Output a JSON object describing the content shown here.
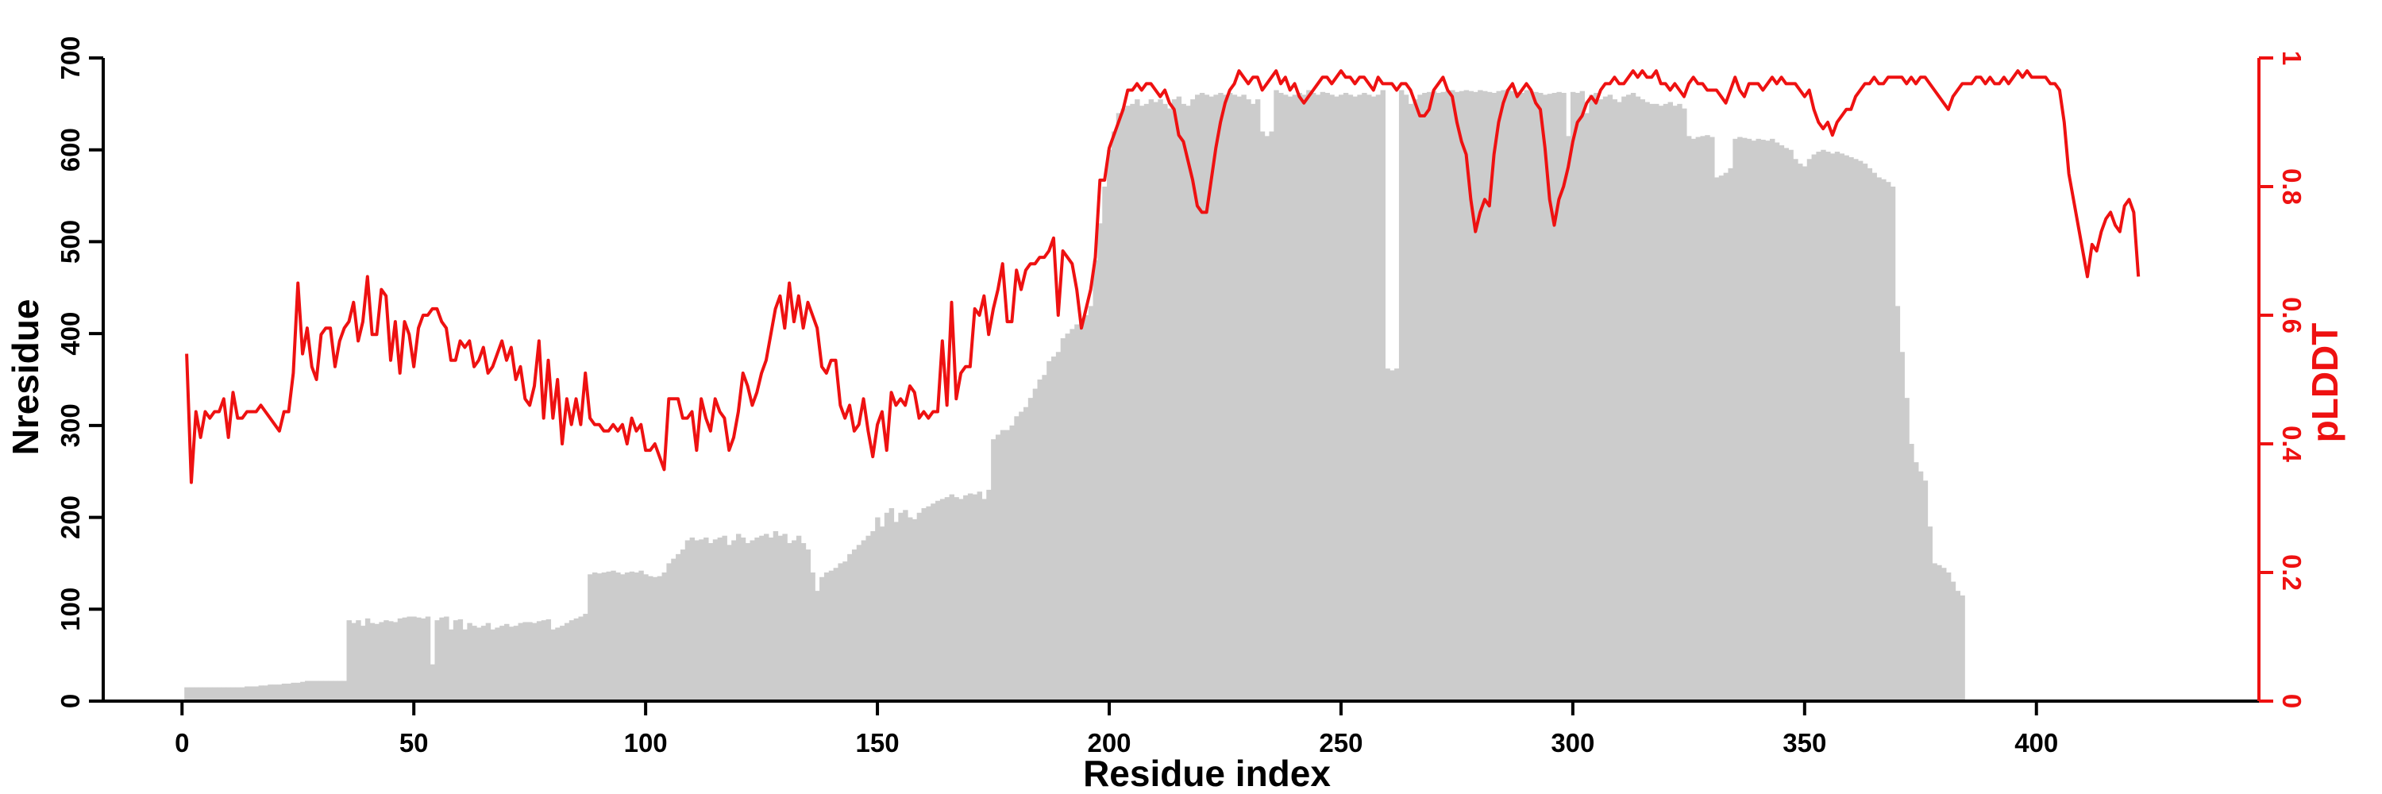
{
  "chart_data": {
    "type": "bar",
    "xlabel": "Residue index",
    "ylabel": "Nresidue",
    "y2label": "pLDDT",
    "xlim": [
      -17,
      448
    ],
    "ylim": [
      0,
      700
    ],
    "y2lim": [
      0,
      1
    ],
    "x_ticks": [
      0,
      50,
      100,
      150,
      200,
      250,
      300,
      350,
      400
    ],
    "y_ticks": [
      0,
      100,
      200,
      300,
      400,
      500,
      600,
      700
    ],
    "y2_ticks": [
      0,
      0.2,
      0.4,
      0.6,
      0.8,
      1
    ],
    "grid": false,
    "colors": {
      "bars": "#cccccc",
      "line": "#ee1111",
      "axis": "#000000",
      "axis2": "#ee1111"
    },
    "series": [
      {
        "type": "bar",
        "axis": "left",
        "values": [
          15,
          15,
          15,
          15,
          15,
          15,
          15,
          15,
          15,
          15,
          15,
          15,
          15,
          16,
          16,
          16,
          17,
          17,
          18,
          18,
          18,
          19,
          19,
          20,
          20,
          21,
          22,
          22,
          22,
          22,
          22,
          22,
          22,
          22,
          22,
          88,
          85,
          88,
          82,
          90,
          85,
          84,
          86,
          88,
          87,
          86,
          90,
          91,
          92,
          92,
          91,
          90,
          92,
          40,
          88,
          91,
          92,
          78,
          88,
          89,
          78,
          85,
          82,
          80,
          82,
          85,
          78,
          80,
          82,
          84,
          81,
          82,
          85,
          86,
          86,
          85,
          87,
          88,
          89,
          78,
          80,
          82,
          85,
          88,
          90,
          92,
          95,
          138,
          140,
          139,
          140,
          141,
          142,
          140,
          138,
          140,
          141,
          140,
          142,
          138,
          136,
          135,
          136,
          140,
          150,
          155,
          160,
          165,
          175,
          178,
          175,
          176,
          178,
          172,
          176,
          178,
          180,
          170,
          175,
          182,
          178,
          172,
          175,
          178,
          180,
          182,
          178,
          185,
          180,
          182,
          172,
          175,
          180,
          172,
          165,
          140,
          120,
          135,
          140,
          142,
          145,
          150,
          152,
          160,
          165,
          170,
          175,
          180,
          185,
          200,
          190,
          205,
          210,
          195,
          205,
          208,
          200,
          198,
          205,
          210,
          212,
          215,
          218,
          220,
          222,
          225,
          222,
          220,
          224,
          226,
          225,
          228,
          220,
          230,
          285,
          290,
          295,
          295,
          300,
          310,
          315,
          320,
          330,
          340,
          350,
          355,
          370,
          375,
          380,
          395,
          400,
          405,
          410,
          415,
          420,
          430,
          480,
          520,
          560,
          600,
          620,
          640,
          645,
          648,
          650,
          655,
          648,
          650,
          655,
          652,
          655,
          650,
          645,
          655,
          658,
          650,
          648,
          655,
          660,
          662,
          660,
          658,
          660,
          662,
          660,
          662,
          660,
          658,
          660,
          655,
          650,
          655,
          620,
          615,
          620,
          665,
          662,
          660,
          658,
          660,
          662,
          660,
          665,
          662,
          660,
          663,
          662,
          660,
          658,
          660,
          662,
          660,
          658,
          660,
          662,
          660,
          658,
          660,
          665,
          362,
          360,
          362,
          665,
          660,
          650,
          655,
          660,
          662,
          663,
          664,
          662,
          663,
          664,
          665,
          663,
          664,
          665,
          664,
          663,
          665,
          664,
          663,
          662,
          664,
          665,
          666,
          664,
          663,
          662,
          665,
          664,
          663,
          662,
          660,
          661,
          662,
          663,
          662,
          615,
          663,
          662,
          664,
          640,
          660,
          662,
          655,
          658,
          660,
          655,
          652,
          658,
          660,
          662,
          658,
          655,
          652,
          650,
          650,
          648,
          650,
          652,
          648,
          650,
          645,
          615,
          612,
          614,
          615,
          616,
          614,
          570,
          572,
          575,
          580,
          612,
          614,
          613,
          612,
          610,
          612,
          611,
          610,
          612,
          608,
          605,
          602,
          600,
          590,
          585,
          582,
          590,
          595,
          598,
          600,
          598,
          596,
          598,
          596,
          594,
          592,
          590,
          588,
          585,
          580,
          575,
          570,
          568,
          565,
          560,
          430,
          380,
          330,
          280,
          260,
          250,
          240,
          190,
          150,
          148,
          145,
          140,
          130,
          120,
          115
        ]
      },
      {
        "type": "line",
        "axis": "right",
        "values": [
          0.54,
          0.34,
          0.45,
          0.41,
          0.45,
          0.44,
          0.45,
          0.45,
          0.47,
          0.41,
          0.48,
          0.44,
          0.44,
          0.45,
          0.45,
          0.45,
          0.46,
          0.45,
          0.44,
          0.43,
          0.42,
          0.45,
          0.45,
          0.51,
          0.65,
          0.54,
          0.58,
          0.52,
          0.5,
          0.57,
          0.58,
          0.58,
          0.52,
          0.56,
          0.58,
          0.59,
          0.62,
          0.56,
          0.59,
          0.66,
          0.57,
          0.57,
          0.64,
          0.63,
          0.53,
          0.59,
          0.51,
          0.59,
          0.57,
          0.52,
          0.58,
          0.6,
          0.6,
          0.61,
          0.61,
          0.59,
          0.58,
          0.53,
          0.53,
          0.56,
          0.55,
          0.56,
          0.52,
          0.53,
          0.55,
          0.51,
          0.52,
          0.54,
          0.56,
          0.53,
          0.55,
          0.5,
          0.52,
          0.47,
          0.46,
          0.49,
          0.56,
          0.44,
          0.53,
          0.44,
          0.5,
          0.4,
          0.47,
          0.43,
          0.47,
          0.43,
          0.51,
          0.44,
          0.43,
          0.43,
          0.42,
          0.42,
          0.43,
          0.42,
          0.43,
          0.4,
          0.44,
          0.42,
          0.43,
          0.39,
          0.39,
          0.4,
          0.38,
          0.36,
          0.47,
          0.47,
          0.47,
          0.44,
          0.44,
          0.45,
          0.39,
          0.47,
          0.44,
          0.42,
          0.47,
          0.45,
          0.44,
          0.39,
          0.41,
          0.45,
          0.51,
          0.49,
          0.46,
          0.48,
          0.51,
          0.53,
          0.57,
          0.61,
          0.63,
          0.58,
          0.65,
          0.59,
          0.63,
          0.58,
          0.62,
          0.6,
          0.58,
          0.52,
          0.51,
          0.53,
          0.53,
          0.46,
          0.44,
          0.46,
          0.42,
          0.43,
          0.47,
          0.42,
          0.38,
          0.43,
          0.45,
          0.39,
          0.48,
          0.46,
          0.47,
          0.46,
          0.49,
          0.48,
          0.44,
          0.45,
          0.44,
          0.45,
          0.45,
          0.56,
          0.46,
          0.62,
          0.47,
          0.51,
          0.52,
          0.52,
          0.61,
          0.6,
          0.63,
          0.57,
          0.61,
          0.64,
          0.68,
          0.59,
          0.59,
          0.67,
          0.64,
          0.67,
          0.68,
          0.68,
          0.69,
          0.69,
          0.7,
          0.72,
          0.6,
          0.7,
          0.69,
          0.68,
          0.64,
          0.58,
          0.61,
          0.64,
          0.69,
          0.81,
          0.81,
          0.86,
          0.88,
          0.9,
          0.92,
          0.95,
          0.95,
          0.96,
          0.95,
          0.96,
          0.96,
          0.95,
          0.94,
          0.95,
          0.93,
          0.92,
          0.88,
          0.87,
          0.84,
          0.81,
          0.77,
          0.76,
          0.76,
          0.81,
          0.86,
          0.9,
          0.93,
          0.95,
          0.96,
          0.98,
          0.97,
          0.96,
          0.97,
          0.97,
          0.95,
          0.96,
          0.97,
          0.98,
          0.96,
          0.97,
          0.95,
          0.96,
          0.94,
          0.93,
          0.94,
          0.95,
          0.96,
          0.97,
          0.97,
          0.96,
          0.97,
          0.98,
          0.97,
          0.97,
          0.96,
          0.97,
          0.97,
          0.96,
          0.95,
          0.97,
          0.96,
          0.96,
          0.96,
          0.95,
          0.96,
          0.96,
          0.95,
          0.93,
          0.91,
          0.91,
          0.92,
          0.95,
          0.96,
          0.97,
          0.95,
          0.94,
          0.9,
          0.87,
          0.85,
          0.78,
          0.73,
          0.76,
          0.78,
          0.77,
          0.85,
          0.9,
          0.93,
          0.95,
          0.96,
          0.94,
          0.95,
          0.96,
          0.95,
          0.93,
          0.92,
          0.86,
          0.78,
          0.74,
          0.78,
          0.8,
          0.83,
          0.87,
          0.9,
          0.91,
          0.93,
          0.94,
          0.93,
          0.95,
          0.96,
          0.96,
          0.97,
          0.96,
          0.96,
          0.97,
          0.98,
          0.97,
          0.98,
          0.97,
          0.97,
          0.98,
          0.96,
          0.96,
          0.95,
          0.96,
          0.95,
          0.94,
          0.96,
          0.97,
          0.96,
          0.96,
          0.95,
          0.95,
          0.95,
          0.94,
          0.93,
          0.95,
          0.97,
          0.95,
          0.94,
          0.96,
          0.96,
          0.96,
          0.95,
          0.96,
          0.97,
          0.96,
          0.97,
          0.96,
          0.96,
          0.96,
          0.95,
          0.94,
          0.95,
          0.92,
          0.9,
          0.89,
          0.9,
          0.88,
          0.9,
          0.91,
          0.92,
          0.92,
          0.94,
          0.95,
          0.96,
          0.96,
          0.97,
          0.96,
          0.96,
          0.97,
          0.97,
          0.97,
          0.97,
          0.96,
          0.97,
          0.96,
          0.97,
          0.97,
          0.96,
          0.95,
          0.94,
          0.93,
          0.92,
          0.94,
          0.95,
          0.96,
          0.96,
          0.96,
          0.97,
          0.97,
          0.96,
          0.97,
          0.96,
          0.96,
          0.97,
          0.96,
          0.97,
          0.98,
          0.97,
          0.98,
          0.97,
          0.97,
          0.97,
          0.97,
          0.96,
          0.96,
          0.95,
          0.9,
          0.82,
          0.78,
          0.74,
          0.7,
          0.66,
          0.71,
          0.7,
          0.73,
          0.75,
          0.76,
          0.74,
          0.73,
          0.77,
          0.78,
          0.76,
          0.66
        ]
      }
    ]
  }
}
